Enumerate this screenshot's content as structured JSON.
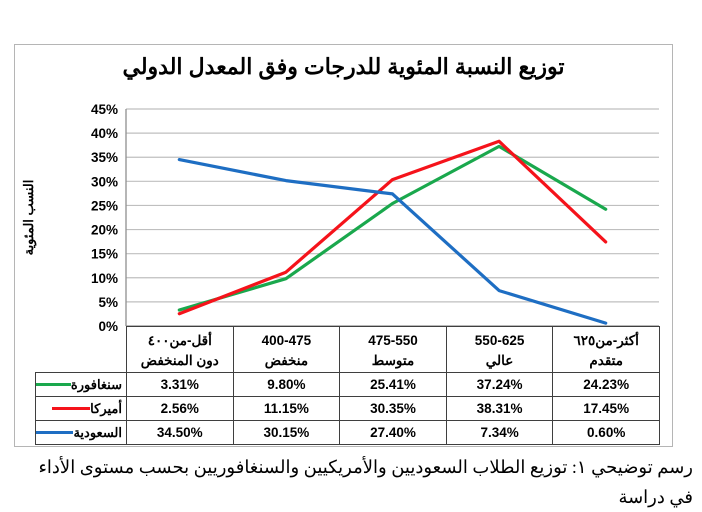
{
  "figure": {
    "caption": "رسم توضيحي ١: توزيع الطلاب السعوديين والأمريكيين والسنغافوريين بحسب مستوى الأداء في دراسة"
  },
  "chart_data": {
    "type": "line",
    "title": "توزيع النسبة المئوية للدرجات وفق المعدل الدولي",
    "xlabel": "",
    "ylabel": "النسب المئوية",
    "ylim": [
      0,
      45
    ],
    "y_tick_step": 5,
    "y_tick_suffix": "%",
    "grid": true,
    "legend_position": "table-left",
    "categories": [
      {
        "range": "أقل-من٤٠٠",
        "level": "دون المنخفض"
      },
      {
        "range": "400-475",
        "level": "منخفض"
      },
      {
        "range": "475-550",
        "level": "متوسط"
      },
      {
        "range": "550-625",
        "level": "عالي"
      },
      {
        "range": "أكثر-من٦٢٥",
        "level": "متقدم"
      }
    ],
    "series": [
      {
        "key": "singapore",
        "name": "سنغافورة",
        "color": "#1aa84d",
        "values": [
          3.31,
          9.8,
          25.41,
          37.24,
          24.23
        ],
        "labels": [
          "3.31%",
          "9.80%",
          "25.41%",
          "37.24%",
          "24.23%"
        ]
      },
      {
        "key": "america",
        "name": "أميركا",
        "color": "#f5131b",
        "values": [
          2.56,
          11.15,
          30.35,
          38.31,
          17.45
        ],
        "labels": [
          "2.56%",
          "11.15%",
          "30.35%",
          "38.31%",
          "17.45%"
        ]
      },
      {
        "key": "saudi-arabia",
        "name": "السعودية",
        "color": "#1e6ec3",
        "values": [
          34.5,
          30.15,
          27.4,
          7.34,
          0.6
        ],
        "labels": [
          "34.50%",
          "30.15%",
          "27.40%",
          "7.34%",
          "0.60%"
        ]
      }
    ]
  }
}
